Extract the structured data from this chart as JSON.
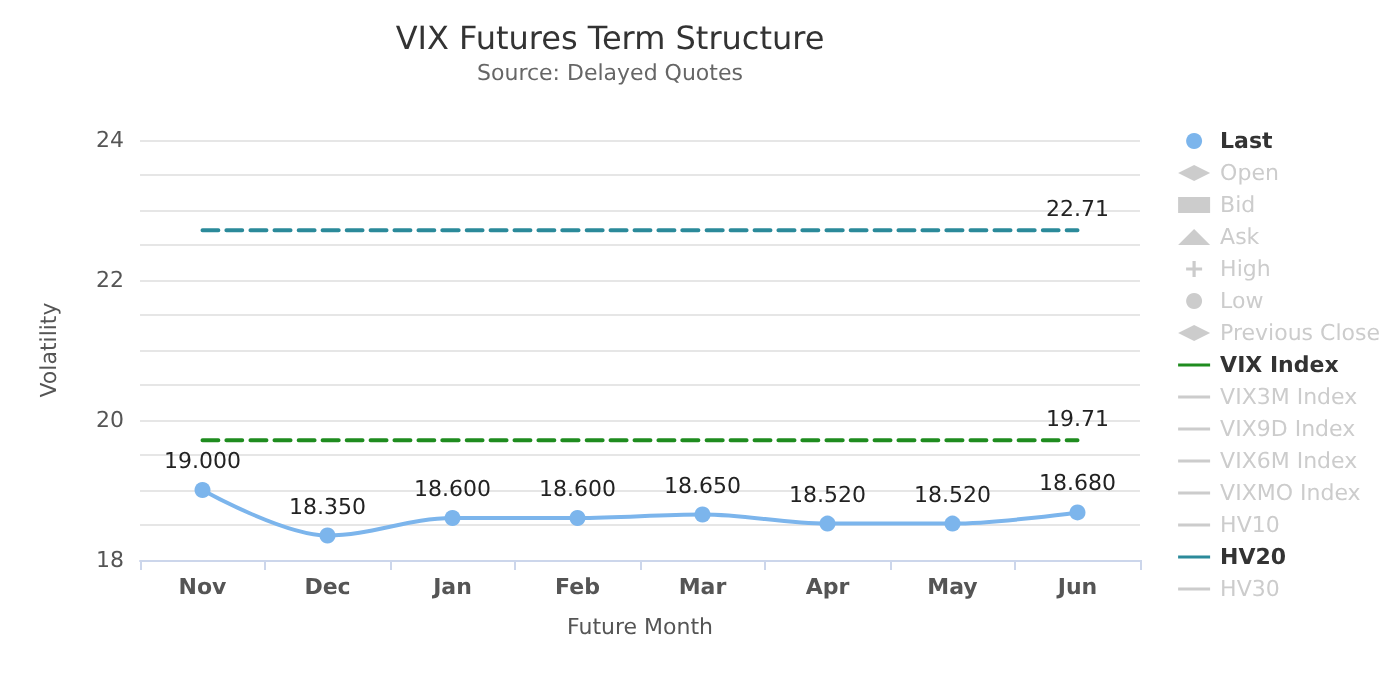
{
  "chart_data": {
    "type": "line",
    "title": "VIX Futures Term Structure",
    "subtitle": "Source: Delayed Quotes",
    "xlabel": "Future Month",
    "ylabel": "Volatility",
    "categories": [
      "Nov",
      "Dec",
      "Jan",
      "Feb",
      "Mar",
      "Apr",
      "May",
      "Jun"
    ],
    "ylim": [
      18,
      24
    ],
    "yticks": [
      18,
      {
        "value": 18.5,
        "label": null
      },
      {
        "value": 19,
        "label": null
      },
      {
        "value": 19.5,
        "label": null
      },
      20,
      {
        "value": 20.5,
        "label": null
      },
      {
        "value": 21,
        "label": null
      },
      {
        "value": 21.5,
        "label": null
      },
      22,
      {
        "value": 22.5,
        "label": null
      },
      {
        "value": 23,
        "label": null
      },
      {
        "value": 23.5,
        "label": null
      },
      24
    ],
    "grid": "y",
    "legend": "right",
    "series": [
      {
        "name": "Last",
        "color": "#7cb5ec",
        "marker": "circle",
        "line_style": "solid",
        "values": [
          19.0,
          18.35,
          18.6,
          18.6,
          18.65,
          18.52,
          18.52,
          18.68
        ],
        "value_labels": [
          "19.000",
          "18.350",
          "18.600",
          "18.600",
          "18.650",
          "18.520",
          "18.520",
          "18.680"
        ]
      },
      {
        "name": "Open",
        "color": "#cccccc",
        "marker": "diamond",
        "line_style": "solid",
        "values": [
          null,
          null,
          null,
          null,
          null,
          null,
          null,
          null
        ]
      },
      {
        "name": "Bid",
        "color": "#cccccc",
        "marker": "square",
        "line_style": "solid",
        "values": [
          null,
          null,
          null,
          null,
          null,
          null,
          null,
          null
        ]
      },
      {
        "name": "Ask",
        "color": "#cccccc",
        "marker": "triangle",
        "line_style": "solid",
        "values": [
          null,
          null,
          null,
          null,
          null,
          null,
          null,
          null
        ]
      },
      {
        "name": "High",
        "color": "#cccccc",
        "marker": "cross",
        "line_style": "solid",
        "values": [
          null,
          null,
          null,
          null,
          null,
          null,
          null,
          null
        ]
      },
      {
        "name": "Low",
        "color": "#cccccc",
        "marker": "circle",
        "line_style": "solid",
        "values": [
          null,
          null,
          null,
          null,
          null,
          null,
          null,
          null
        ]
      },
      {
        "name": "Previous Close",
        "color": "#cccccc",
        "marker": "diamond",
        "line_style": "solid",
        "values": [
          null,
          null,
          null,
          null,
          null,
          null,
          null,
          null
        ]
      },
      {
        "name": "VIX Index",
        "color": "#1f8c1f",
        "marker": "none",
        "line_style": "dashed",
        "values": [
          19.71,
          19.71,
          19.71,
          19.71,
          19.71,
          19.71,
          19.71,
          19.71
        ],
        "value_labels": [
          null,
          null,
          null,
          null,
          null,
          null,
          null,
          "19.71"
        ]
      },
      {
        "name": "VIX3M Index",
        "color": "#cccccc",
        "marker": "none",
        "line_style": "solid",
        "values": [
          null,
          null,
          null,
          null,
          null,
          null,
          null,
          null
        ]
      },
      {
        "name": "VIX9D Index",
        "color": "#cccccc",
        "marker": "none",
        "line_style": "solid",
        "values": [
          null,
          null,
          null,
          null,
          null,
          null,
          null,
          null
        ]
      },
      {
        "name": "VIX6M Index",
        "color": "#cccccc",
        "marker": "none",
        "line_style": "dotted",
        "values": [
          null,
          null,
          null,
          null,
          null,
          null,
          null,
          null
        ]
      },
      {
        "name": "VIXMO Index",
        "color": "#cccccc",
        "marker": "none",
        "line_style": "dashed",
        "values": [
          null,
          null,
          null,
          null,
          null,
          null,
          null,
          null
        ]
      },
      {
        "name": "HV10",
        "color": "#cccccc",
        "marker": "none",
        "line_style": "dashed",
        "values": [
          null,
          null,
          null,
          null,
          null,
          null,
          null,
          null
        ]
      },
      {
        "name": "HV20",
        "color": "#2b8a9a",
        "marker": "none",
        "line_style": "dashed",
        "values": [
          22.71,
          22.71,
          22.71,
          22.71,
          22.71,
          22.71,
          22.71,
          22.71
        ],
        "value_labels": [
          null,
          null,
          null,
          null,
          null,
          null,
          null,
          "22.71"
        ]
      },
      {
        "name": "HV30",
        "color": "#cccccc",
        "marker": "none",
        "line_style": "dashed",
        "values": [
          null,
          null,
          null,
          null,
          null,
          null,
          null,
          null
        ]
      }
    ]
  }
}
